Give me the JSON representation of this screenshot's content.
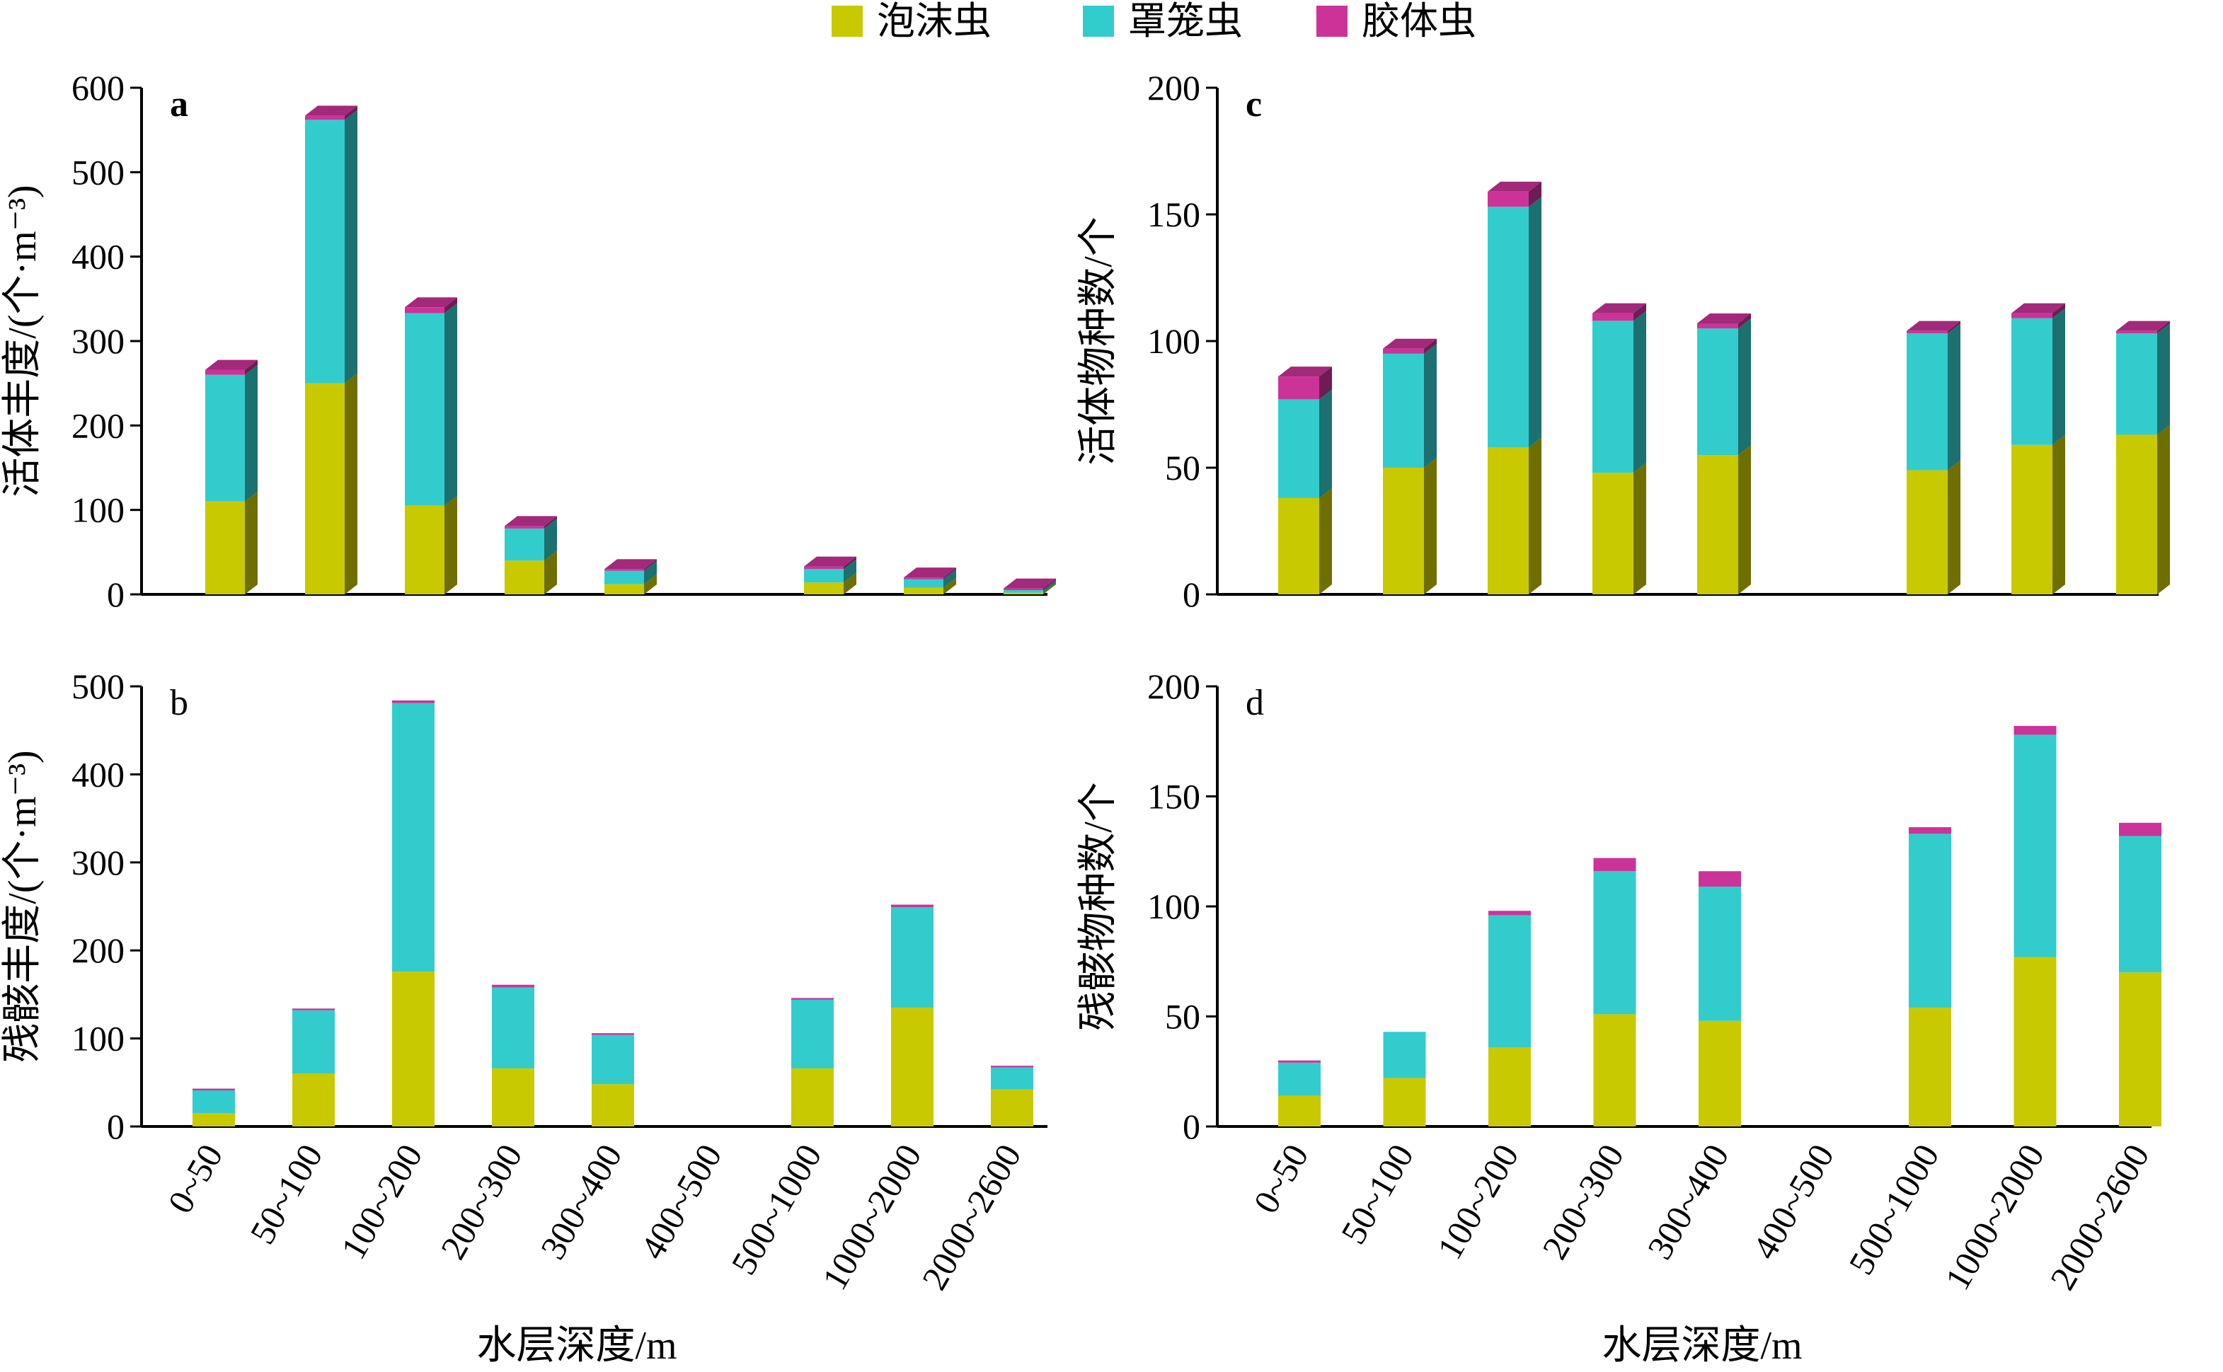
{
  "legend": [
    {
      "label": "泡沫虫",
      "color": "#c9c900"
    },
    {
      "label": "罩笼虫",
      "color": "#33cccc"
    },
    {
      "label": "胶体虫",
      "color": "#cc3399"
    }
  ],
  "xlabel": "水层深度/m",
  "chart_data": [
    {
      "id": "a",
      "letter": "a",
      "type": "bar",
      "stacked": true,
      "style": "3d",
      "ylabel": "活体丰度/(个·m⁻³)",
      "ylim": [
        0,
        600
      ],
      "yticks": [
        0,
        100,
        200,
        300,
        400,
        500,
        600
      ],
      "categories": [
        "0~50",
        "50~100",
        "100~200",
        "200~300",
        "300~400",
        "400~500",
        "500~1000",
        "1000~2000",
        "2000~2600"
      ],
      "series": [
        {
          "name": "泡沫虫",
          "values": [
            110,
            250,
            105,
            40,
            12,
            0,
            14,
            8,
            2
          ]
        },
        {
          "name": "罩笼虫",
          "values": [
            150,
            312,
            228,
            38,
            16,
            0,
            16,
            10,
            3
          ]
        },
        {
          "name": "胶体虫",
          "values": [
            6,
            5,
            7,
            3,
            2,
            0,
            3,
            2,
            2
          ]
        }
      ]
    },
    {
      "id": "b",
      "letter": "b",
      "type": "bar",
      "stacked": true,
      "style": "flat",
      "ylabel": "残骸丰度/(个·m⁻³)",
      "ylim": [
        0,
        500
      ],
      "yticks": [
        0,
        100,
        200,
        300,
        400,
        500
      ],
      "categories": [
        "0~50",
        "50~100",
        "100~200",
        "200~300",
        "300~400",
        "400~500",
        "500~1000",
        "1000~2000",
        "2000~2600"
      ],
      "series": [
        {
          "name": "泡沫虫",
          "values": [
            15,
            60,
            176,
            66,
            48,
            0,
            66,
            135,
            42
          ]
        },
        {
          "name": "罩笼虫",
          "values": [
            26,
            72,
            305,
            92,
            56,
            0,
            78,
            114,
            25
          ]
        },
        {
          "name": "胶体虫",
          "values": [
            2,
            2,
            3,
            3,
            2,
            0,
            2,
            3,
            2
          ]
        }
      ]
    },
    {
      "id": "c",
      "letter": "c",
      "type": "bar",
      "stacked": true,
      "style": "3d",
      "ylabel": "活体物种数/个",
      "ylim": [
        0,
        200
      ],
      "yticks": [
        0,
        50,
        100,
        150,
        200
      ],
      "categories": [
        "0~50",
        "50~100",
        "100~200",
        "200~300",
        "300~400",
        "400~500",
        "500~1000",
        "1000~2000",
        "2000~2600"
      ],
      "series": [
        {
          "name": "泡沫虫",
          "values": [
            38,
            50,
            58,
            48,
            55,
            0,
            49,
            59,
            63
          ]
        },
        {
          "name": "罩笼虫",
          "values": [
            39,
            45,
            95,
            60,
            50,
            0,
            54,
            50,
            40
          ]
        },
        {
          "name": "胶体虫",
          "values": [
            9,
            2,
            6,
            3,
            2,
            0,
            1,
            2,
            1
          ]
        }
      ]
    },
    {
      "id": "d",
      "letter": "d",
      "type": "bar",
      "stacked": true,
      "style": "flat",
      "ylabel": "残骸物种数/个",
      "ylim": [
        0,
        200
      ],
      "yticks": [
        0,
        50,
        100,
        150,
        200
      ],
      "categories": [
        "0~50",
        "50~100",
        "100~200",
        "200~300",
        "300~400",
        "400~500",
        "500~1000",
        "1000~2000",
        "2000~2600"
      ],
      "series": [
        {
          "name": "泡沫虫",
          "values": [
            14,
            22,
            36,
            51,
            48,
            0,
            54,
            77,
            70
          ]
        },
        {
          "name": "罩笼虫",
          "values": [
            15,
            21,
            60,
            65,
            61,
            0,
            79,
            101,
            62
          ]
        },
        {
          "name": "胶体虫",
          "values": [
            1,
            0,
            2,
            6,
            7,
            0,
            3,
            4,
            6
          ]
        }
      ]
    }
  ]
}
